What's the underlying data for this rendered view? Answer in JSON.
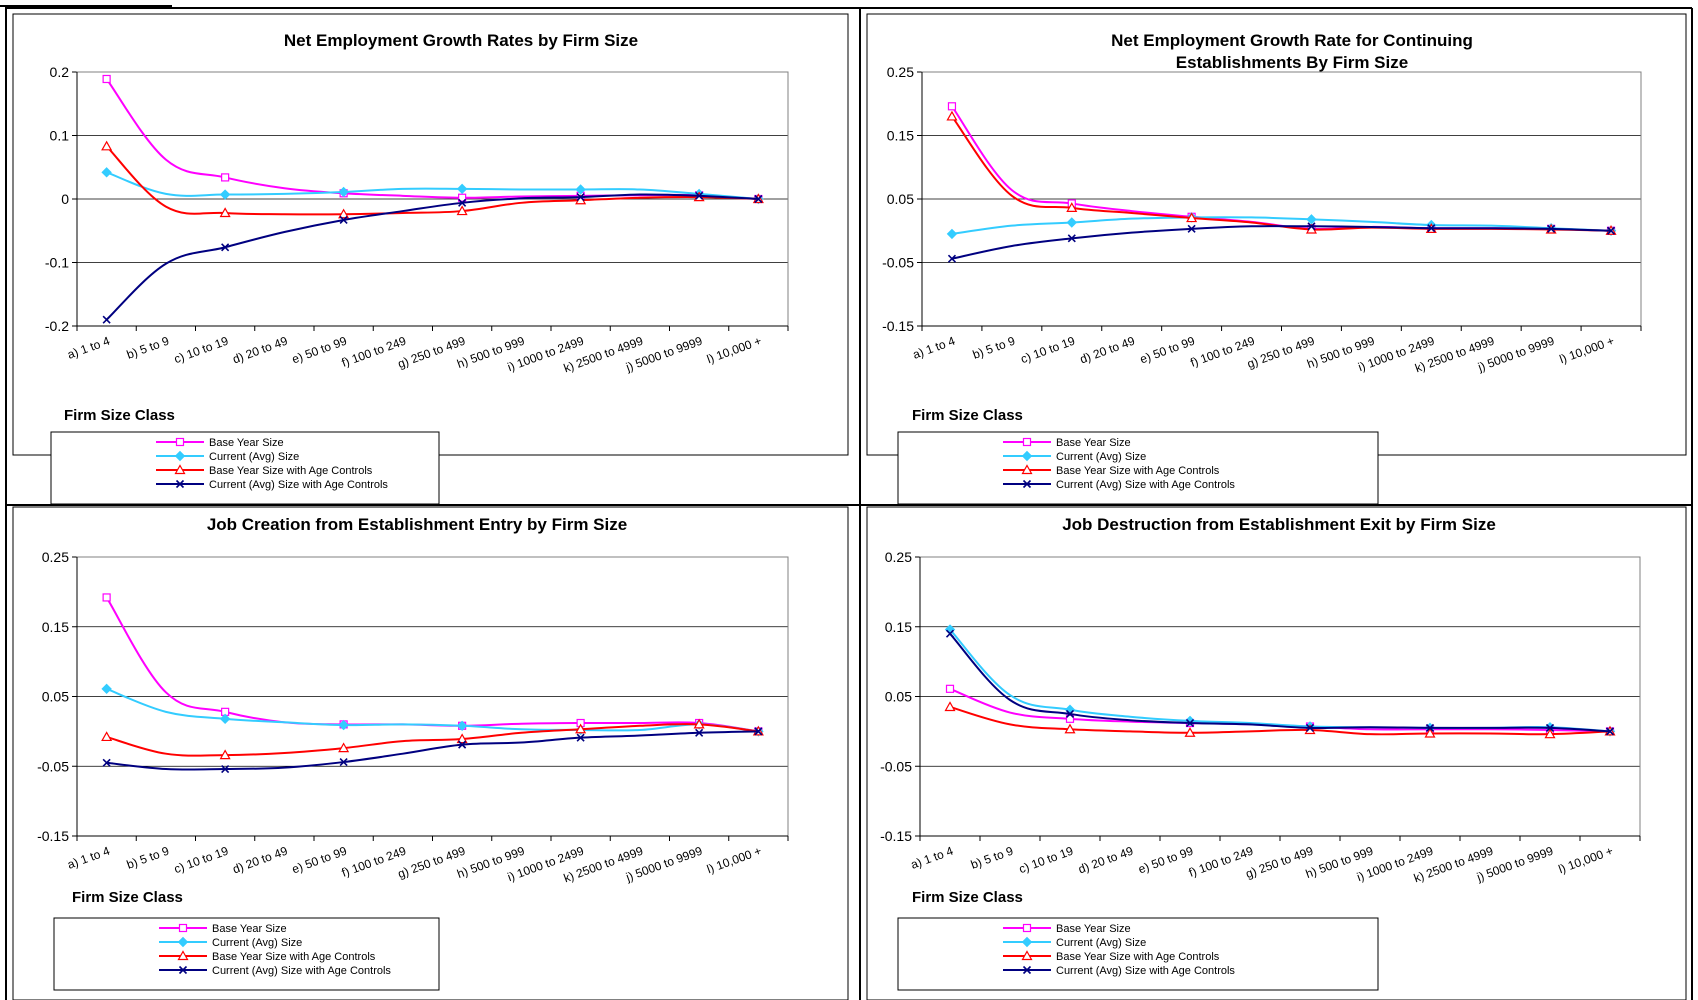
{
  "chart_data": [
    {
      "type": "line",
      "title": "Net Employment Growth Rates by Firm Size",
      "title_line2": "",
      "xlabel": "Firm Size Class",
      "ylabel": "",
      "ylim": [
        -0.2,
        0.2
      ],
      "yticks": [
        "0.2",
        "0.1",
        "0",
        "-0.1",
        "-0.2"
      ],
      "ytick_values": [
        0.2,
        0.1,
        0,
        -0.1,
        -0.2
      ],
      "grid": true,
      "legend_position": "bottom-left",
      "categories": [
        "a) 1 to 4",
        "b) 5 to 9",
        "c) 10 to 19",
        "d) 20 to 49",
        "e) 50 to 99",
        "f) 100 to 249",
        "g) 250 to 499",
        "h) 500 to 999",
        "i) 1000 to 2499",
        "k) 2500 to 4999",
        "j) 5000 to 9999",
        "l) 10,000 +"
      ],
      "series": [
        {
          "name": "Base Year Size",
          "color": "#FF00FF",
          "marker": "square",
          "values": [
            0.189,
            0.062,
            0.034,
            0.017,
            0.009,
            0.005,
            0.002,
            0.004,
            0.005,
            0.006,
            0.006,
            0.0
          ]
        },
        {
          "name": "Current (Avg) Size",
          "color": "#33CCFF",
          "marker": "diamond",
          "values": [
            0.042,
            0.008,
            0.007,
            0.008,
            0.011,
            0.016,
            0.016,
            0.015,
            0.015,
            0.015,
            0.008,
            0.0
          ]
        },
        {
          "name": "Base Year Size with Age Controls",
          "color": "#FF0000",
          "marker": "triangle",
          "values": [
            0.083,
            -0.012,
            -0.022,
            -0.024,
            -0.024,
            -0.022,
            -0.019,
            -0.006,
            -0.002,
            0.002,
            0.003,
            0.0
          ]
        },
        {
          "name": "Current (Avg) Size with Age Controls",
          "color": "#000080",
          "marker": "x",
          "values": [
            -0.19,
            -0.102,
            -0.076,
            -0.052,
            -0.033,
            -0.019,
            -0.006,
            0.001,
            0.003,
            0.007,
            0.005,
            0.0
          ]
        }
      ]
    },
    {
      "type": "line",
      "title": "Net Employment Growth Rate for Continuing",
      "title_line2": "Establishments By Firm Size",
      "xlabel": "Firm Size Class",
      "ylabel": "",
      "ylim": [
        -0.15,
        0.25
      ],
      "yticks": [
        "0.25",
        "0.15",
        "0.05",
        "-0.05",
        "-0.15"
      ],
      "ytick_values": [
        0.25,
        0.15,
        0.05,
        -0.05,
        -0.15
      ],
      "grid": true,
      "legend_position": "bottom-left",
      "categories": [
        "a) 1 to 4",
        "b) 5 to 9",
        "c) 10 to 19",
        "d) 20 to 49",
        "e) 50 to 99",
        "f) 100 to 249",
        "g) 250 to 499",
        "h) 500 to 999",
        "i) 1000 to 2499",
        "k) 2500 to 4999",
        "j) 5000 to 9999",
        "l) 10,000 +"
      ],
      "series": [
        {
          "name": "Base Year Size",
          "color": "#FF00FF",
          "marker": "square",
          "values": [
            0.196,
            0.064,
            0.043,
            0.031,
            0.022,
            0.014,
            0.003,
            0.006,
            0.004,
            0.004,
            0.003,
            0.0
          ]
        },
        {
          "name": "Current (Avg) Size",
          "color": "#33CCFF",
          "marker": "diamond",
          "values": [
            -0.005,
            0.008,
            0.013,
            0.019,
            0.021,
            0.021,
            0.018,
            0.014,
            0.009,
            0.008,
            0.004,
            0.0
          ]
        },
        {
          "name": "Base Year Size with Age Controls",
          "color": "#FF0000",
          "marker": "triangle",
          "values": [
            0.18,
            0.055,
            0.036,
            0.028,
            0.02,
            0.013,
            0.002,
            0.005,
            0.003,
            0.003,
            0.002,
            0.0
          ]
        },
        {
          "name": "Current (Avg) Size with Age Controls",
          "color": "#000080",
          "marker": "x",
          "values": [
            -0.044,
            -0.024,
            -0.012,
            -0.003,
            0.003,
            0.007,
            0.007,
            0.006,
            0.004,
            0.004,
            0.003,
            0.0
          ]
        }
      ]
    },
    {
      "type": "line",
      "title": "Job Creation from Establishment Entry by Firm Size",
      "title_line2": "",
      "xlabel": "Firm Size Class",
      "ylabel": "",
      "ylim": [
        -0.15,
        0.25
      ],
      "yticks": [
        "0.25",
        "0.15",
        "0.05",
        "-0.05",
        "-0.15"
      ],
      "ytick_values": [
        0.25,
        0.15,
        0.05,
        -0.05,
        -0.15
      ],
      "grid": true,
      "legend_position": "bottom-left",
      "categories": [
        "a) 1 to 4",
        "b) 5 to 9",
        "c) 10 to 19",
        "d) 20 to 49",
        "e) 50 to 99",
        "f) 100 to 249",
        "g) 250 to 499",
        "h) 500 to 999",
        "i) 1000 to 2499",
        "k) 2500 to 4999",
        "j) 5000 to 9999",
        "l) 10,000 +"
      ],
      "series": [
        {
          "name": "Base Year Size",
          "color": "#FF00FF",
          "marker": "square",
          "values": [
            0.192,
            0.056,
            0.028,
            0.013,
            0.01,
            0.01,
            0.008,
            0.011,
            0.012,
            0.012,
            0.012,
            0.0
          ]
        },
        {
          "name": "Current (Avg) Size",
          "color": "#33CCFF",
          "marker": "diamond",
          "values": [
            0.061,
            0.028,
            0.018,
            0.013,
            0.009,
            0.01,
            0.008,
            0.003,
            0.002,
            0.002,
            0.01,
            0.0
          ]
        },
        {
          "name": "Base Year Size with Age Controls",
          "color": "#FF0000",
          "marker": "triangle",
          "values": [
            -0.008,
            -0.032,
            -0.034,
            -0.031,
            -0.024,
            -0.014,
            -0.011,
            -0.002,
            0.003,
            0.008,
            0.01,
            0.0
          ]
        },
        {
          "name": "Current (Avg) Size with Age Controls",
          "color": "#000080",
          "marker": "x",
          "values": [
            -0.045,
            -0.054,
            -0.054,
            -0.052,
            -0.044,
            -0.032,
            -0.019,
            -0.016,
            -0.009,
            -0.006,
            -0.002,
            0.0
          ]
        }
      ]
    },
    {
      "type": "line",
      "title": "Job Destruction from Establishment Exit by Firm Size",
      "title_line2": "",
      "xlabel": "Firm Size Class",
      "ylabel": "",
      "ylim": [
        -0.15,
        0.25
      ],
      "yticks": [
        "0.25",
        "0.15",
        "0.05",
        "-0.05",
        "-0.15"
      ],
      "ytick_values": [
        0.25,
        0.15,
        0.05,
        -0.05,
        -0.15
      ],
      "grid": true,
      "legend_position": "bottom-left",
      "categories": [
        "a) 1 to 4",
        "b) 5 to 9",
        "c) 10 to 19",
        "d) 20 to 49",
        "e) 50 to 99",
        "f) 100 to 249",
        "g) 250 to 499",
        "h) 500 to 999",
        "i) 1000 to 2499",
        "k) 2500 to 4999",
        "j) 5000 to 9999",
        "l) 10,000 +"
      ],
      "series": [
        {
          "name": "Base Year Size",
          "color": "#FF00FF",
          "marker": "square",
          "values": [
            0.061,
            0.027,
            0.018,
            0.014,
            0.012,
            0.01,
            0.007,
            0.003,
            0.003,
            0.003,
            0.002,
            0.0
          ]
        },
        {
          "name": "Current (Avg) Size",
          "color": "#33CCFF",
          "marker": "diamond",
          "values": [
            0.146,
            0.052,
            0.031,
            0.021,
            0.015,
            0.012,
            0.007,
            0.006,
            0.005,
            0.005,
            0.006,
            0.0
          ]
        },
        {
          "name": "Base Year Size with Age Controls",
          "color": "#FF0000",
          "marker": "triangle",
          "values": [
            0.035,
            0.01,
            0.003,
            0.0,
            -0.002,
            0.0,
            0.002,
            -0.004,
            -0.003,
            -0.003,
            -0.004,
            0.0
          ]
        },
        {
          "name": "Current (Avg) Size with Age Controls",
          "color": "#000080",
          "marker": "x",
          "values": [
            0.14,
            0.045,
            0.025,
            0.016,
            0.012,
            0.01,
            0.005,
            0.006,
            0.005,
            0.005,
            0.005,
            0.0
          ]
        }
      ]
    }
  ]
}
